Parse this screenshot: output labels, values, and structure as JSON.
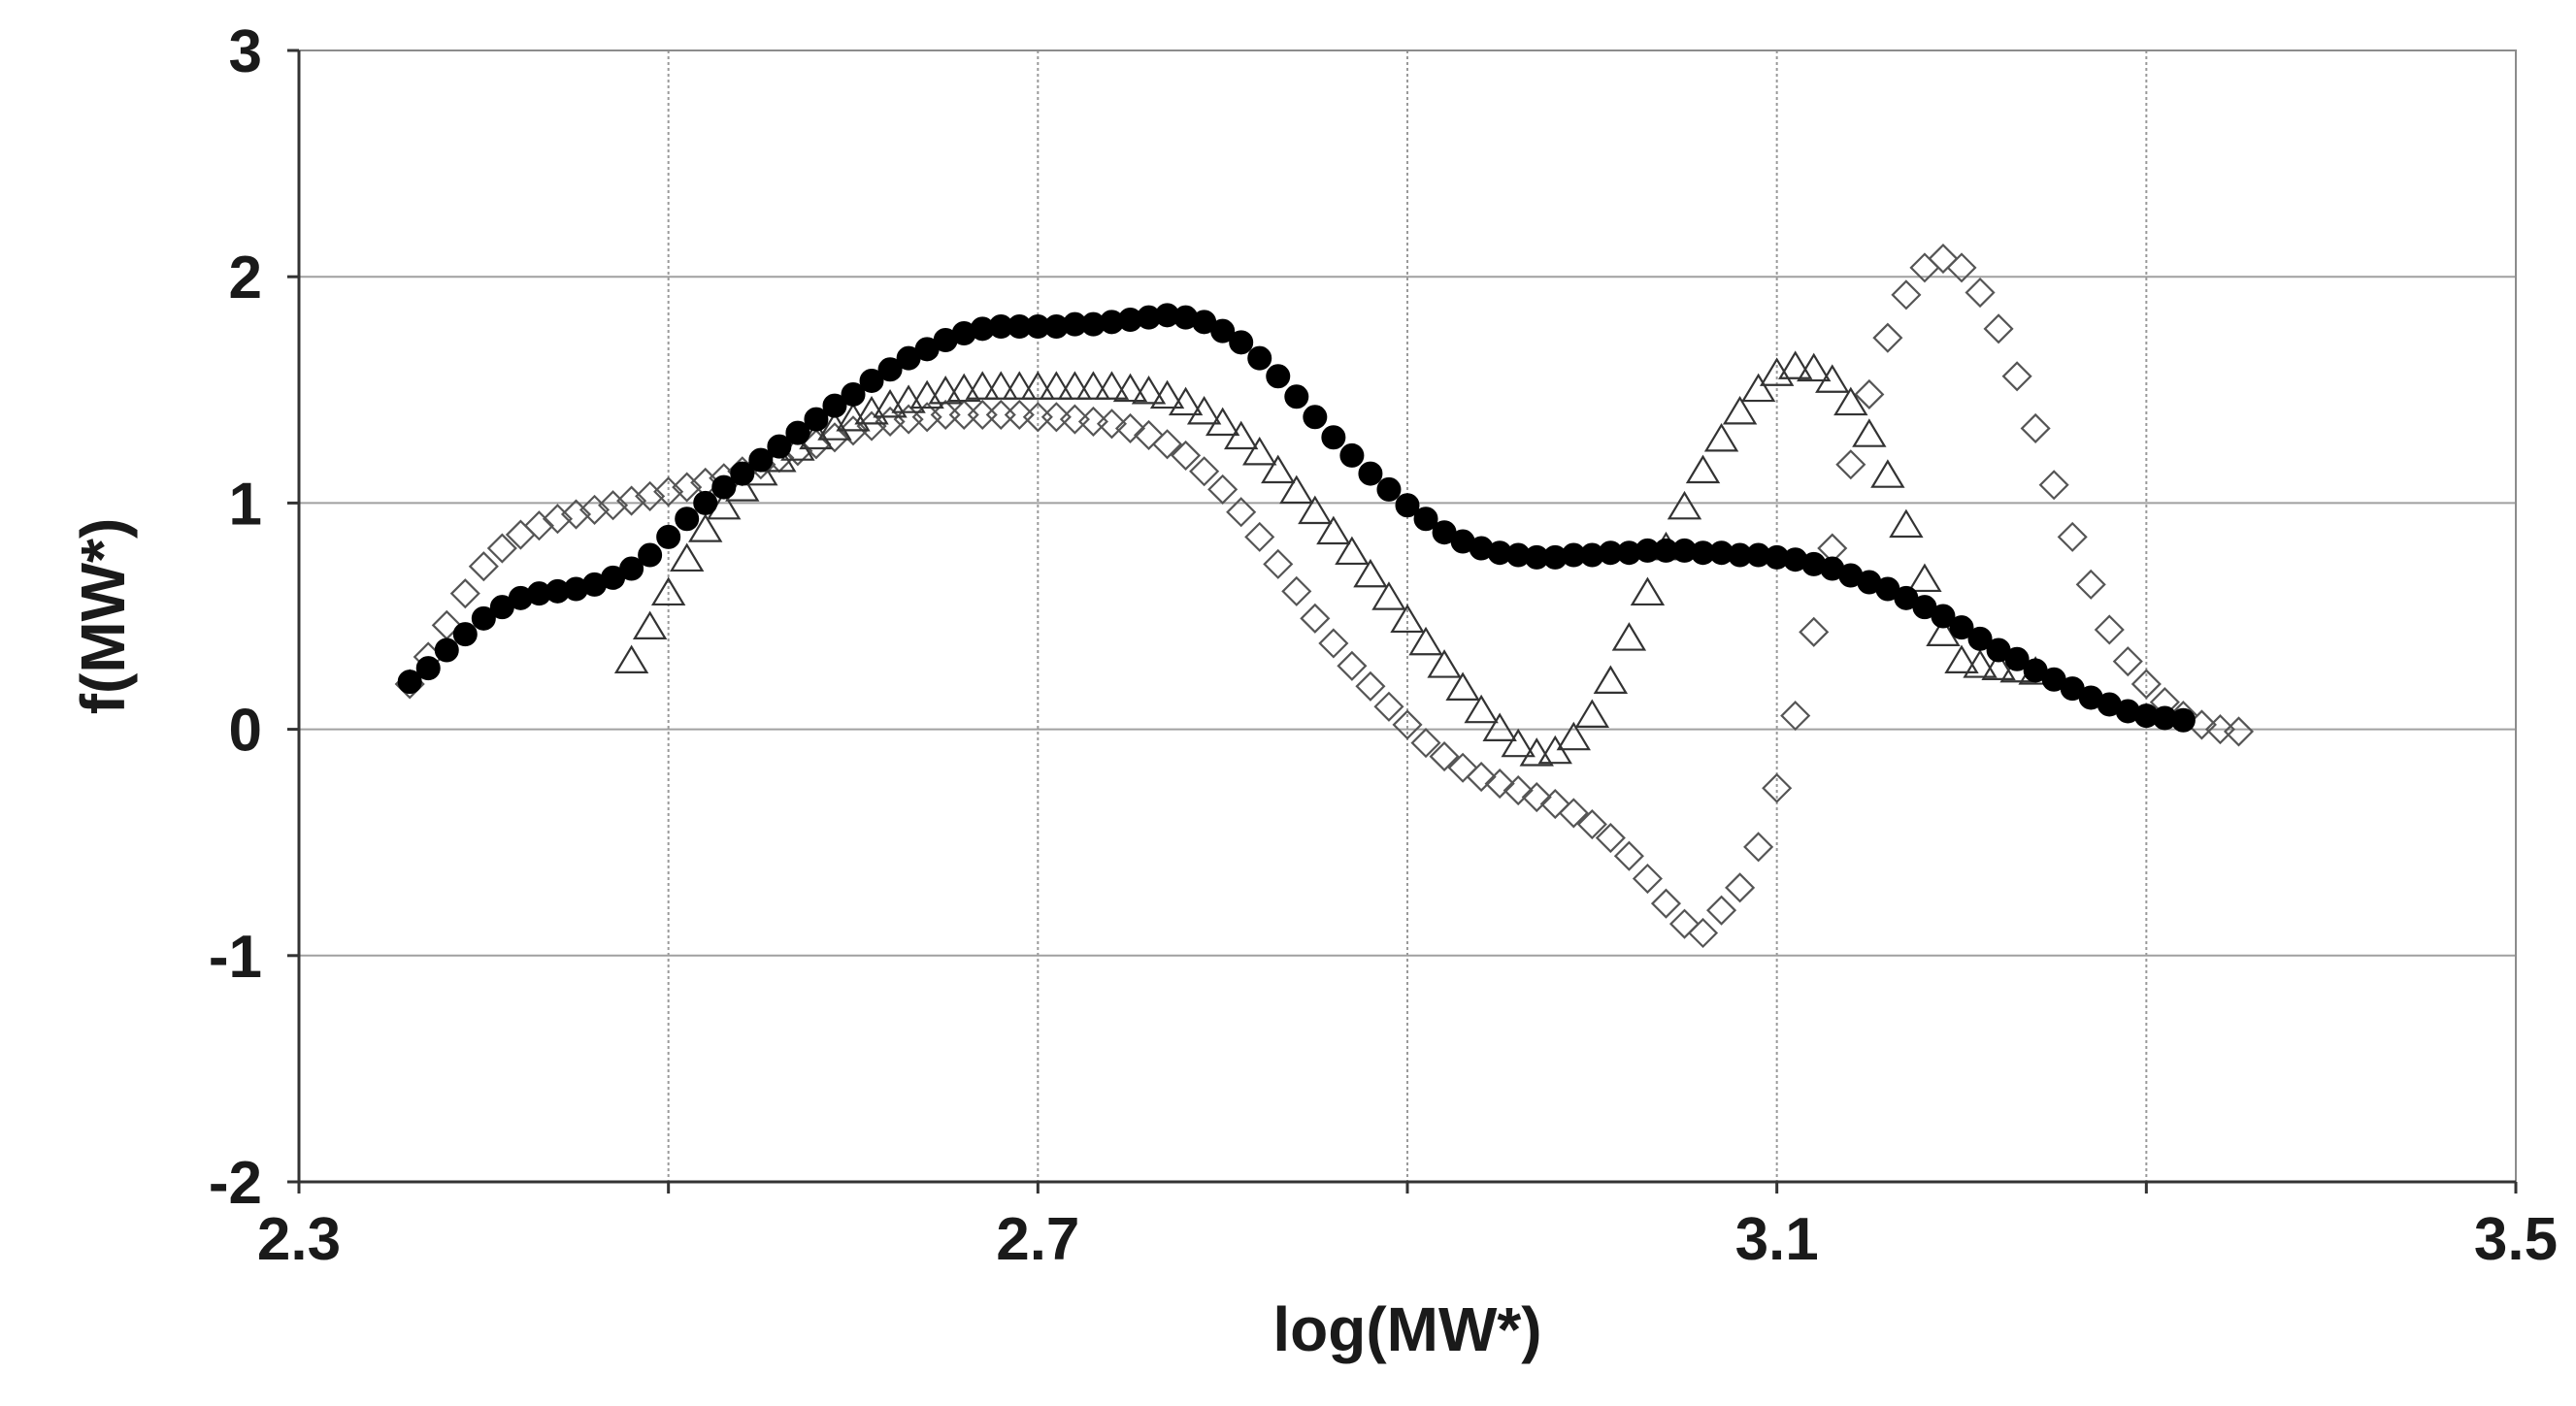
{
  "chart_data": {
    "type": "scatter",
    "title": "",
    "xlabel": "log(MW*)",
    "ylabel": "f(MW*)",
    "xlim": [
      2.3,
      3.5
    ],
    "ylim": [
      -2,
      3
    ],
    "x_ticks": [
      "2.3",
      "2.7",
      "3.1",
      "3.5"
    ],
    "x_tick_values": [
      2.3,
      2.7,
      3.1,
      3.5
    ],
    "x_gridlines": [
      2.3,
      2.5,
      2.7,
      2.9,
      3.1,
      3.3,
      3.5
    ],
    "y_ticks": [
      "3",
      "2",
      "1",
      "0",
      "-1",
      "-2"
    ],
    "y_tick_values": [
      3,
      2,
      1,
      0,
      -1,
      -2
    ],
    "grid": true,
    "legend": "none",
    "series": [
      {
        "marker": "filled-circle",
        "color": "#000000",
        "x": [
          2.36,
          2.37,
          2.38,
          2.39,
          2.4,
          2.41,
          2.42,
          2.43,
          2.44,
          2.45,
          2.46,
          2.47,
          2.48,
          2.49,
          2.5,
          2.51,
          2.52,
          2.53,
          2.54,
          2.55,
          2.56,
          2.57,
          2.58,
          2.59,
          2.6,
          2.61,
          2.62,
          2.63,
          2.64,
          2.65,
          2.66,
          2.67,
          2.68,
          2.69,
          2.7,
          2.71,
          2.72,
          2.73,
          2.74,
          2.75,
          2.76,
          2.77,
          2.78,
          2.79,
          2.8,
          2.81,
          2.82,
          2.83,
          2.84,
          2.85,
          2.86,
          2.87,
          2.88,
          2.89,
          2.9,
          2.91,
          2.92,
          2.93,
          2.94,
          2.95,
          2.96,
          2.97,
          2.98,
          2.99,
          3.0,
          3.01,
          3.02,
          3.03,
          3.04,
          3.05,
          3.06,
          3.07,
          3.08,
          3.09,
          3.1,
          3.11,
          3.12,
          3.13,
          3.14,
          3.15,
          3.16,
          3.17,
          3.18,
          3.19,
          3.2,
          3.21,
          3.22,
          3.23,
          3.24,
          3.25,
          3.26,
          3.27,
          3.28,
          3.29,
          3.3,
          3.31,
          3.32
        ],
        "y": [
          0.21,
          0.27,
          0.35,
          0.42,
          0.49,
          0.54,
          0.58,
          0.6,
          0.61,
          0.62,
          0.64,
          0.67,
          0.71,
          0.77,
          0.85,
          0.93,
          1.0,
          1.07,
          1.13,
          1.19,
          1.25,
          1.31,
          1.37,
          1.43,
          1.48,
          1.54,
          1.59,
          1.64,
          1.68,
          1.72,
          1.75,
          1.77,
          1.78,
          1.78,
          1.78,
          1.78,
          1.79,
          1.79,
          1.8,
          1.81,
          1.82,
          1.83,
          1.82,
          1.8,
          1.76,
          1.71,
          1.64,
          1.56,
          1.47,
          1.38,
          1.29,
          1.21,
          1.13,
          1.06,
          0.99,
          0.93,
          0.87,
          0.83,
          0.8,
          0.78,
          0.77,
          0.76,
          0.76,
          0.77,
          0.77,
          0.78,
          0.78,
          0.79,
          0.79,
          0.79,
          0.78,
          0.78,
          0.77,
          0.77,
          0.76,
          0.75,
          0.73,
          0.71,
          0.68,
          0.65,
          0.62,
          0.58,
          0.54,
          0.5,
          0.45,
          0.4,
          0.35,
          0.31,
          0.26,
          0.22,
          0.18,
          0.14,
          0.11,
          0.08,
          0.06,
          0.05,
          0.04
        ]
      },
      {
        "marker": "open-triangle",
        "color": "#333333",
        "x": [
          2.48,
          2.49,
          2.5,
          2.51,
          2.52,
          2.53,
          2.54,
          2.55,
          2.56,
          2.57,
          2.58,
          2.59,
          2.6,
          2.61,
          2.62,
          2.63,
          2.64,
          2.65,
          2.66,
          2.67,
          2.68,
          2.69,
          2.7,
          2.71,
          2.72,
          2.73,
          2.74,
          2.75,
          2.76,
          2.77,
          2.78,
          2.79,
          2.8,
          2.81,
          2.82,
          2.83,
          2.84,
          2.85,
          2.86,
          2.87,
          2.88,
          2.89,
          2.9,
          2.91,
          2.92,
          2.93,
          2.94,
          2.95,
          2.96,
          2.97,
          2.98,
          2.99,
          3.0,
          3.01,
          3.02,
          3.03,
          3.04,
          3.05,
          3.06,
          3.07,
          3.08,
          3.09,
          3.1,
          3.11,
          3.12,
          3.13,
          3.14,
          3.15,
          3.16,
          3.17,
          3.18,
          3.19,
          3.2,
          3.21,
          3.22,
          3.23,
          3.24
        ],
        "y": [
          0.3,
          0.45,
          0.6,
          0.75,
          0.88,
          0.98,
          1.06,
          1.13,
          1.19,
          1.24,
          1.29,
          1.33,
          1.37,
          1.4,
          1.43,
          1.45,
          1.47,
          1.49,
          1.5,
          1.51,
          1.51,
          1.51,
          1.51,
          1.51,
          1.51,
          1.51,
          1.51,
          1.5,
          1.49,
          1.47,
          1.44,
          1.4,
          1.35,
          1.29,
          1.22,
          1.14,
          1.05,
          0.96,
          0.87,
          0.78,
          0.68,
          0.58,
          0.48,
          0.38,
          0.28,
          0.18,
          0.08,
          0.0,
          -0.07,
          -0.11,
          -0.1,
          -0.04,
          0.06,
          0.21,
          0.4,
          0.6,
          0.8,
          0.98,
          1.14,
          1.28,
          1.4,
          1.5,
          1.57,
          1.6,
          1.59,
          1.54,
          1.44,
          1.3,
          1.12,
          0.9,
          0.66,
          0.42,
          0.3,
          0.28,
          0.27,
          0.26,
          0.25
        ]
      },
      {
        "marker": "open-diamond",
        "color": "#555555",
        "x": [
          2.36,
          2.37,
          2.38,
          2.39,
          2.4,
          2.41,
          2.42,
          2.43,
          2.44,
          2.45,
          2.46,
          2.47,
          2.48,
          2.49,
          2.5,
          2.51,
          2.52,
          2.53,
          2.54,
          2.55,
          2.56,
          2.57,
          2.58,
          2.59,
          2.6,
          2.61,
          2.62,
          2.63,
          2.64,
          2.65,
          2.66,
          2.67,
          2.68,
          2.69,
          2.7,
          2.71,
          2.72,
          2.73,
          2.74,
          2.75,
          2.76,
          2.77,
          2.78,
          2.79,
          2.8,
          2.81,
          2.82,
          2.83,
          2.84,
          2.85,
          2.86,
          2.87,
          2.88,
          2.89,
          2.9,
          2.91,
          2.92,
          2.93,
          2.94,
          2.95,
          2.96,
          2.97,
          2.98,
          2.99,
          3.0,
          3.01,
          3.02,
          3.03,
          3.04,
          3.05,
          3.06,
          3.07,
          3.08,
          3.09,
          3.1,
          3.11,
          3.12,
          3.13,
          3.14,
          3.15,
          3.16,
          3.17,
          3.18,
          3.19,
          3.2,
          3.21,
          3.22,
          3.23,
          3.24,
          3.25,
          3.26,
          3.27,
          3.28,
          3.29,
          3.3,
          3.31,
          3.32,
          3.33,
          3.34,
          3.35
        ],
        "y": [
          0.2,
          0.32,
          0.46,
          0.6,
          0.72,
          0.8,
          0.86,
          0.9,
          0.93,
          0.95,
          0.97,
          0.99,
          1.01,
          1.03,
          1.05,
          1.07,
          1.09,
          1.11,
          1.14,
          1.17,
          1.2,
          1.23,
          1.26,
          1.29,
          1.32,
          1.34,
          1.36,
          1.37,
          1.38,
          1.39,
          1.39,
          1.39,
          1.39,
          1.39,
          1.38,
          1.38,
          1.37,
          1.36,
          1.35,
          1.33,
          1.3,
          1.26,
          1.21,
          1.14,
          1.06,
          0.96,
          0.85,
          0.73,
          0.61,
          0.49,
          0.38,
          0.28,
          0.19,
          0.1,
          0.02,
          -0.06,
          -0.12,
          -0.17,
          -0.21,
          -0.24,
          -0.27,
          -0.3,
          -0.33,
          -0.37,
          -0.42,
          -0.48,
          -0.56,
          -0.66,
          -0.77,
          -0.86,
          -0.9,
          -0.8,
          -0.7,
          -0.52,
          -0.26,
          0.06,
          0.43,
          0.8,
          1.17,
          1.48,
          1.73,
          1.92,
          2.04,
          2.08,
          2.04,
          1.93,
          1.77,
          1.56,
          1.33,
          1.08,
          0.85,
          0.64,
          0.44,
          0.3,
          0.2,
          0.12,
          0.06,
          0.02,
          0.0,
          -0.01
        ]
      }
    ]
  }
}
